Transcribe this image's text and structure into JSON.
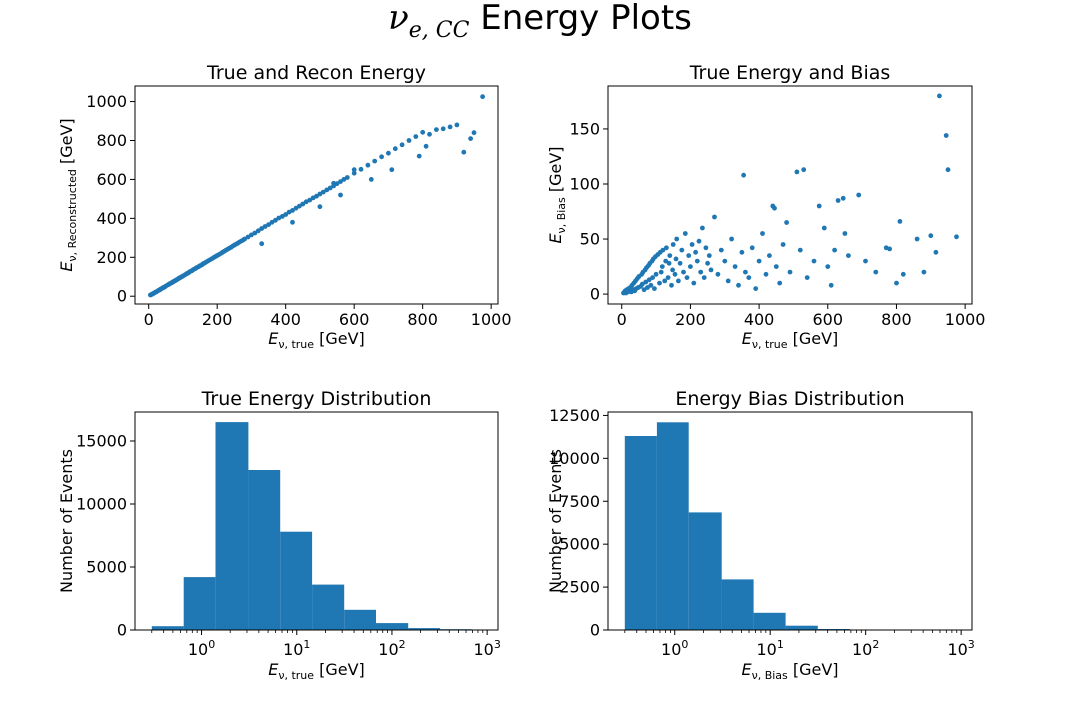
{
  "figure": {
    "title_symbol": "ν",
    "title_subscript": "e, CC",
    "title_text": "Energy Plots",
    "marker_color": "#1f77b4"
  },
  "chart_data": [
    {
      "type": "scatter",
      "title": "True and Recon Energy",
      "xlabel_main": "E",
      "xlabel_sub": "ν, true",
      "xlabel_unit": " [GeV]",
      "ylabel_main": "E",
      "ylabel_sub": "ν, Reconstructed",
      "ylabel_unit": " [GeV]",
      "xlim": [
        -40,
        1020
      ],
      "ylim": [
        -40,
        1080
      ],
      "xticks": [
        0,
        200,
        400,
        600,
        800,
        1000
      ],
      "yticks": [
        0,
        200,
        400,
        600,
        800,
        1000
      ],
      "points": [
        [
          5,
          6
        ],
        [
          8,
          9
        ],
        [
          10,
          11
        ],
        [
          12,
          12
        ],
        [
          15,
          16
        ],
        [
          18,
          18
        ],
        [
          20,
          21
        ],
        [
          22,
          22
        ],
        [
          25,
          26
        ],
        [
          28,
          29
        ],
        [
          30,
          31
        ],
        [
          33,
          33
        ],
        [
          35,
          37
        ],
        [
          38,
          39
        ],
        [
          40,
          41
        ],
        [
          42,
          44
        ],
        [
          45,
          46
        ],
        [
          48,
          49
        ],
        [
          50,
          52
        ],
        [
          55,
          57
        ],
        [
          58,
          60
        ],
        [
          60,
          62
        ],
        [
          62,
          65
        ],
        [
          65,
          67
        ],
        [
          68,
          70
        ],
        [
          70,
          73
        ],
        [
          72,
          74
        ],
        [
          75,
          78
        ],
        [
          78,
          80
        ],
        [
          80,
          83
        ],
        [
          82,
          85
        ],
        [
          85,
          88
        ],
        [
          88,
          92
        ],
        [
          90,
          93
        ],
        [
          92,
          96
        ],
        [
          95,
          98
        ],
        [
          98,
          102
        ],
        [
          100,
          104
        ],
        [
          105,
          109
        ],
        [
          110,
          115
        ],
        [
          112,
          116
        ],
        [
          115,
          120
        ],
        [
          118,
          123
        ],
        [
          120,
          126
        ],
        [
          125,
          130
        ],
        [
          128,
          133
        ],
        [
          130,
          136
        ],
        [
          135,
          141
        ],
        [
          138,
          144
        ],
        [
          140,
          147
        ],
        [
          145,
          151
        ],
        [
          148,
          154
        ],
        [
          150,
          157
        ],
        [
          155,
          161
        ],
        [
          158,
          165
        ],
        [
          160,
          168
        ],
        [
          165,
          172
        ],
        [
          170,
          178
        ],
        [
          175,
          183
        ],
        [
          180,
          188
        ],
        [
          185,
          193
        ],
        [
          190,
          199
        ],
        [
          195,
          204
        ],
        [
          200,
          209
        ],
        [
          205,
          214
        ],
        [
          210,
          219
        ],
        [
          215,
          225
        ],
        [
          220,
          230
        ],
        [
          225,
          236
        ],
        [
          230,
          241
        ],
        [
          235,
          246
        ],
        [
          240,
          251
        ],
        [
          245,
          257
        ],
        [
          250,
          262
        ],
        [
          255,
          267
        ],
        [
          260,
          272
        ],
        [
          265,
          278
        ],
        [
          270,
          283
        ],
        [
          275,
          288
        ],
        [
          280,
          294
        ],
        [
          290,
          304
        ],
        [
          300,
          315
        ],
        [
          310,
          325
        ],
        [
          320,
          336
        ],
        [
          330,
          348
        ],
        [
          340,
          358
        ],
        [
          350,
          368
        ],
        [
          360,
          380
        ],
        [
          370,
          390
        ],
        [
          380,
          402
        ],
        [
          390,
          410
        ],
        [
          400,
          420
        ],
        [
          410,
          432
        ],
        [
          420,
          441
        ],
        [
          430,
          452
        ],
        [
          440,
          463
        ],
        [
          450,
          474
        ],
        [
          460,
          485
        ],
        [
          470,
          494
        ],
        [
          480,
          505
        ],
        [
          490,
          514
        ],
        [
          500,
          525
        ],
        [
          510,
          535
        ],
        [
          520,
          546
        ],
        [
          530,
          556
        ],
        [
          540,
          567
        ],
        [
          550,
          578
        ],
        [
          560,
          589
        ],
        [
          570,
          600
        ],
        [
          580,
          610
        ],
        [
          600,
          632
        ],
        [
          620,
          652
        ],
        [
          640,
          673
        ],
        [
          660,
          694
        ],
        [
          680,
          716
        ],
        [
          700,
          735
        ],
        [
          720,
          758
        ],
        [
          740,
          778
        ],
        [
          760,
          800
        ],
        [
          780,
          820
        ],
        [
          800,
          842
        ],
        [
          820,
          832
        ],
        [
          840,
          856
        ],
        [
          860,
          860
        ],
        [
          880,
          870
        ],
        [
          900,
          880
        ],
        [
          920,
          740
        ],
        [
          940,
          810
        ],
        [
          950,
          840
        ],
        [
          975,
          1025
        ],
        [
          330,
          270
        ],
        [
          420,
          380
        ],
        [
          500,
          460
        ],
        [
          560,
          520
        ],
        [
          650,
          600
        ],
        [
          710,
          650
        ],
        [
          790,
          720
        ],
        [
          810,
          770
        ],
        [
          600,
          650
        ],
        [
          540,
          580
        ]
      ]
    },
    {
      "type": "scatter",
      "title": "True Energy and Bias",
      "xlabel_main": "E",
      "xlabel_sub": "ν, true",
      "xlabel_unit": " [GeV]",
      "ylabel_main": "E",
      "ylabel_sub": "ν, Bias",
      "ylabel_unit": "  [GeV]",
      "xlim": [
        -40,
        1020
      ],
      "ylim": [
        -9,
        189
      ],
      "xticks": [
        0,
        200,
        400,
        600,
        800,
        1000
      ],
      "yticks": [
        0,
        50,
        100,
        150
      ],
      "points": [
        [
          5,
          1
        ],
        [
          8,
          2
        ],
        [
          10,
          3
        ],
        [
          12,
          1
        ],
        [
          15,
          4
        ],
        [
          18,
          2
        ],
        [
          20,
          5
        ],
        [
          22,
          3
        ],
        [
          25,
          6
        ],
        [
          28,
          2
        ],
        [
          30,
          8
        ],
        [
          33,
          4
        ],
        [
          35,
          10
        ],
        [
          38,
          3
        ],
        [
          40,
          12
        ],
        [
          42,
          5
        ],
        [
          45,
          14
        ],
        [
          48,
          6
        ],
        [
          50,
          16
        ],
        [
          55,
          7
        ],
        [
          58,
          18
        ],
        [
          60,
          9
        ],
        [
          62,
          20
        ],
        [
          65,
          4
        ],
        [
          68,
          22
        ],
        [
          70,
          11
        ],
        [
          72,
          24
        ],
        [
          75,
          6
        ],
        [
          78,
          26
        ],
        [
          80,
          13
        ],
        [
          82,
          28
        ],
        [
          85,
          8
        ],
        [
          88,
          30
        ],
        [
          90,
          15
        ],
        [
          92,
          32
        ],
        [
          95,
          5
        ],
        [
          98,
          34
        ],
        [
          100,
          18
        ],
        [
          105,
          36
        ],
        [
          110,
          10
        ],
        [
          112,
          38
        ],
        [
          115,
          20
        ],
        [
          118,
          25
        ],
        [
          120,
          40
        ],
        [
          125,
          12
        ],
        [
          128,
          30
        ],
        [
          130,
          42
        ],
        [
          135,
          15
        ],
        [
          138,
          28
        ],
        [
          140,
          35
        ],
        [
          145,
          8
        ],
        [
          148,
          22
        ],
        [
          150,
          45
        ],
        [
          155,
          18
        ],
        [
          158,
          32
        ],
        [
          160,
          50
        ],
        [
          165,
          12
        ],
        [
          170,
          28
        ],
        [
          175,
          40
        ],
        [
          180,
          20
        ],
        [
          185,
          55
        ],
        [
          190,
          15
        ],
        [
          195,
          35
        ],
        [
          200,
          25
        ],
        [
          205,
          45
        ],
        [
          210,
          10
        ],
        [
          215,
          38
        ],
        [
          220,
          30
        ],
        [
          225,
          48
        ],
        [
          230,
          20
        ],
        [
          235,
          60
        ],
        [
          240,
          15
        ],
        [
          245,
          42
        ],
        [
          250,
          28
        ],
        [
          255,
          35
        ],
        [
          260,
          22
        ],
        [
          270,
          70
        ],
        [
          280,
          18
        ],
        [
          290,
          40
        ],
        [
          300,
          30
        ],
        [
          310,
          12
        ],
        [
          320,
          50
        ],
        [
          330,
          25
        ],
        [
          340,
          8
        ],
        [
          350,
          38
        ],
        [
          355,
          108
        ],
        [
          360,
          20
        ],
        [
          370,
          15
        ],
        [
          380,
          42
        ],
        [
          390,
          5
        ],
        [
          400,
          30
        ],
        [
          410,
          55
        ],
        [
          420,
          18
        ],
        [
          430,
          35
        ],
        [
          440,
          80
        ],
        [
          445,
          78
        ],
        [
          450,
          25
        ],
        [
          460,
          10
        ],
        [
          470,
          45
        ],
        [
          480,
          65
        ],
        [
          490,
          20
        ],
        [
          510,
          111
        ],
        [
          520,
          40
        ],
        [
          530,
          113
        ],
        [
          540,
          15
        ],
        [
          560,
          30
        ],
        [
          575,
          80
        ],
        [
          590,
          60
        ],
        [
          600,
          25
        ],
        [
          610,
          8
        ],
        [
          620,
          40
        ],
        [
          630,
          85
        ],
        [
          645,
          87
        ],
        [
          650,
          55
        ],
        [
          660,
          35
        ],
        [
          690,
          90
        ],
        [
          710,
          30
        ],
        [
          740,
          20
        ],
        [
          770,
          42
        ],
        [
          780,
          41
        ],
        [
          800,
          10
        ],
        [
          810,
          66
        ],
        [
          820,
          18
        ],
        [
          860,
          50
        ],
        [
          880,
          20
        ],
        [
          900,
          53
        ],
        [
          915,
          38
        ],
        [
          925,
          180
        ],
        [
          945,
          144
        ],
        [
          950,
          113
        ],
        [
          975,
          52
        ]
      ]
    },
    {
      "type": "bar",
      "title": "True Energy Distribution",
      "xlabel_main": "E",
      "xlabel_sub": "ν, true",
      "xlabel_unit": " [GeV]",
      "ylabel": "Number of Events",
      "xscale": "log",
      "xlim": [
        0.2,
        1300
      ],
      "ylim": [
        0,
        17300
      ],
      "xticks": [
        1,
        10,
        100,
        1000
      ],
      "xtick_labels": [
        "10^0",
        "10^1",
        "10^2",
        "10^3"
      ],
      "yticks": [
        0,
        5000,
        10000,
        15000
      ],
      "bin_edges": [
        0.3,
        0.65,
        1.4,
        3.1,
        6.7,
        14.5,
        31.5,
        68,
        148,
        320,
        690,
        1000
      ],
      "values": [
        300,
        4200,
        16500,
        12700,
        7800,
        3600,
        1600,
        550,
        150,
        60,
        20
      ]
    },
    {
      "type": "bar",
      "title": "Energy Bias Distribution",
      "xlabel_main": "E",
      "xlabel_sub": "ν, Bias",
      "xlabel_unit": " [GeV]",
      "ylabel": "Number of Events",
      "xscale": "log",
      "xlim": [
        0.2,
        1300
      ],
      "ylim": [
        0,
        12700
      ],
      "xticks": [
        1,
        10,
        100,
        1000
      ],
      "xtick_labels": [
        "10^0",
        "10^1",
        "10^2",
        "10^3"
      ],
      "yticks": [
        0,
        2500,
        5000,
        7500,
        10000,
        12500
      ],
      "bin_edges": [
        0.3,
        0.65,
        1.4,
        3.1,
        6.7,
        14.5,
        31.5,
        68,
        148,
        320,
        690,
        1000
      ],
      "values": [
        11300,
        12100,
        6850,
        2950,
        1000,
        250,
        60,
        15,
        5,
        2,
        1
      ]
    }
  ]
}
